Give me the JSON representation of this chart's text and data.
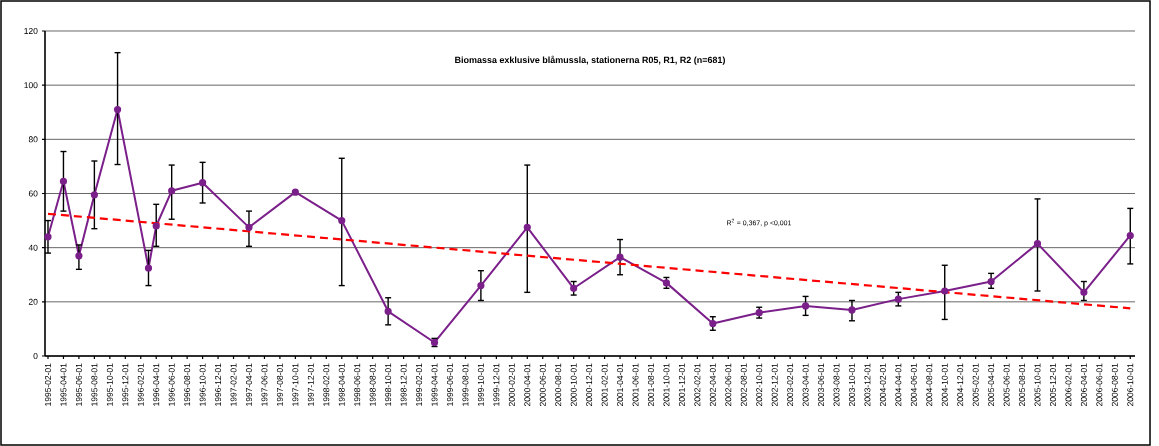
{
  "chart_data": {
    "type": "line",
    "title": "Biomassa exklusive blåmussla, stationerna R05, R1, R2 (n=681)",
    "x": [
      "1995-02",
      "1995-04",
      "1995-06",
      "1995-08",
      "1995-11",
      "1996-03",
      "1996-04",
      "1996-06",
      "1996-10",
      "1997-04",
      "1997-10",
      "1998-04",
      "1998-10",
      "1999-04",
      "1999-10",
      "2000-04",
      "2000-10",
      "2001-04",
      "2001-10",
      "2002-04",
      "2002-10",
      "2003-04",
      "2003-10",
      "2004-04",
      "2004-10",
      "2005-04",
      "2005-10",
      "2006-04",
      "2006-10"
    ],
    "series": [
      {
        "color": "#7b1f8a",
        "marker": "circle",
        "line_style": "solid",
        "values": [
          44,
          64.5,
          37,
          59.5,
          91,
          32.5,
          48,
          61,
          64,
          47.5,
          60.5,
          50,
          16.5,
          5,
          26,
          47.5,
          25,
          36.5,
          27,
          12,
          16,
          18.5,
          17,
          21,
          24,
          27.5,
          41.5,
          23.5,
          44.5
        ],
        "errors": [
          [
            38,
            50
          ],
          [
            53.5,
            75.5
          ],
          [
            32,
            41
          ],
          [
            47,
            72
          ],
          [
            70.7,
            112
          ],
          [
            26,
            39
          ],
          [
            40.5,
            56
          ],
          [
            50.5,
            70.5
          ],
          [
            56.5,
            71.5
          ],
          [
            40.5,
            53.5
          ],
          null,
          [
            26,
            73
          ],
          [
            11.5,
            21.5
          ],
          [
            3.5,
            6.5
          ],
          [
            20.5,
            31.5
          ],
          [
            23.5,
            70.5
          ],
          [
            22.5,
            27.5
          ],
          [
            30,
            43
          ],
          [
            25,
            29
          ],
          [
            9.5,
            14.5
          ],
          [
            14,
            18
          ],
          [
            15,
            22
          ],
          [
            13,
            20.5
          ],
          [
            18.5,
            23.5
          ],
          [
            13.5,
            33.5
          ],
          [
            25,
            30.5
          ],
          [
            24,
            58
          ],
          [
            20.5,
            27.5
          ],
          [
            34,
            54.5
          ]
        ]
      },
      {
        "type": "line",
        "x": [
          "1995-02",
          "2006-10"
        ],
        "values": [
          52.5,
          17.6
        ],
        "color": "#ff0000",
        "line_style": "dashed",
        "marker": "none"
      }
    ],
    "xlim": [
      "1995-01-20",
      "2006-10-20"
    ],
    "xticks": [
      "1995-02-01",
      "1995-04-01",
      "1995-06-01",
      "1995-08-01",
      "1995-10-01",
      "1995-12-01",
      "1996-02-01",
      "1996-04-01",
      "1996-06-01",
      "1996-08-01",
      "1996-10-01",
      "1996-12-01",
      "1997-02-01",
      "1997-04-01",
      "1997-06-01",
      "1997-08-01",
      "1997-10-01",
      "1997-12-01",
      "1998-02-01",
      "1998-04-01",
      "1998-06-01",
      "1998-08-01",
      "1998-10-01",
      "1998-12-01",
      "1999-02-01",
      "1999-04-01",
      "1999-06-01",
      "1999-08-01",
      "1999-10-01",
      "1999-12-01",
      "2000-02-01",
      "2000-04-01",
      "2000-06-01",
      "2000-08-01",
      "2000-10-01",
      "2000-12-01",
      "2001-02-01",
      "2001-04-01",
      "2001-06-01",
      "2001-08-01",
      "2001-10-01",
      "2001-12-01",
      "2002-02-01",
      "2002-04-01",
      "2002-06-01",
      "2002-08-01",
      "2002-10-01",
      "2002-12-01",
      "2003-02-01",
      "2003-04-01",
      "2003-06-01",
      "2003-08-01",
      "2003-10-01",
      "2003-12-01",
      "2004-02-01",
      "2004-04-01",
      "2004-06-01",
      "2004-08-01",
      "2004-10-01",
      "2004-12-01",
      "2005-02-01",
      "2005-04-01",
      "2005-06-01",
      "2005-08-01",
      "2005-10-01",
      "2005-12-01",
      "2006-02-01",
      "2006-04-01",
      "2006-06-01",
      "2006-08-01",
      "2006-10-01"
    ],
    "ylim": [
      0,
      120
    ],
    "yticks": [
      0,
      20,
      40,
      60,
      80,
      100,
      120
    ],
    "grid": "y",
    "annotations": [
      "R$^{2}$ = 0,367, p <0,001"
    ]
  }
}
